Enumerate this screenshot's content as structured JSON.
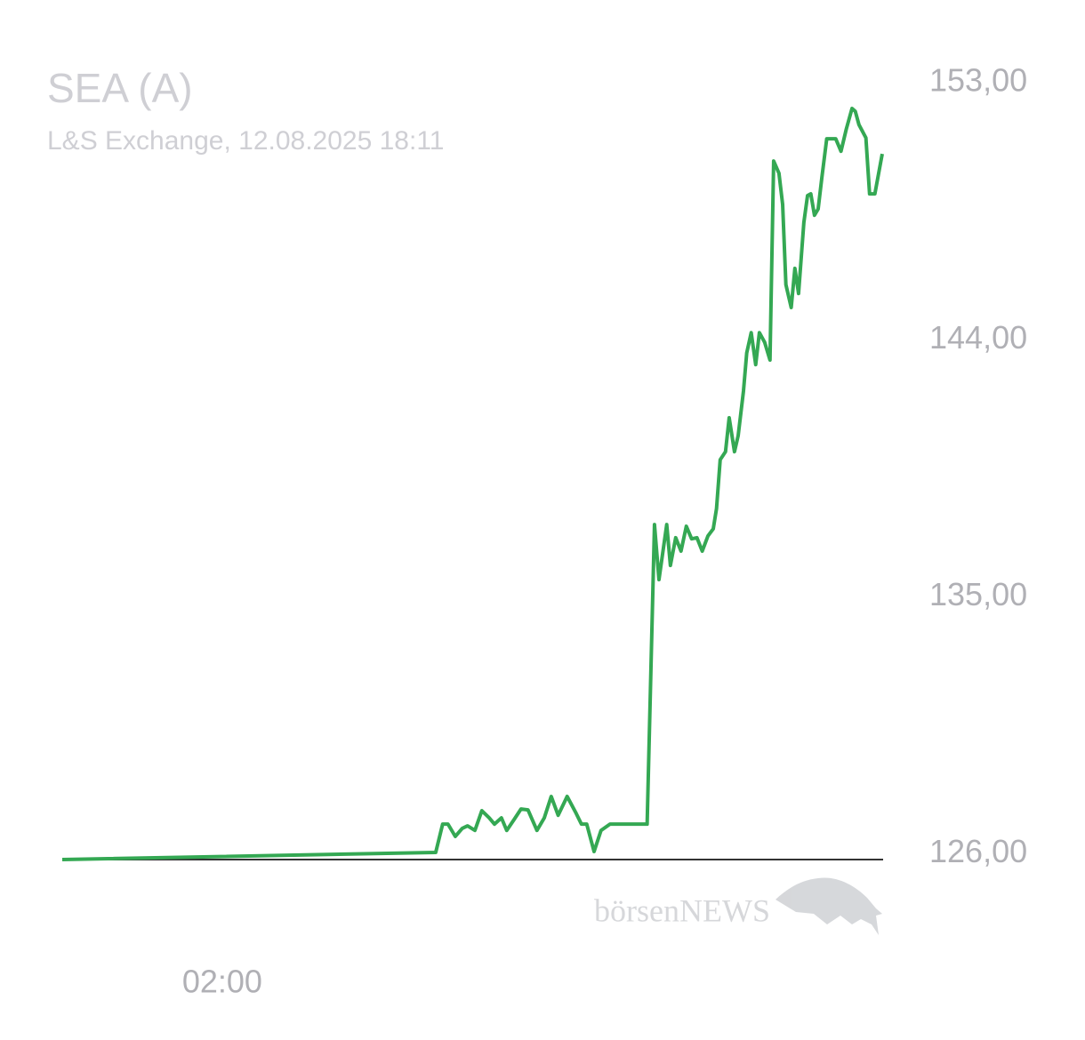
{
  "chart_data": {
    "type": "line",
    "title": "SEA (A)",
    "subtitle": "L&S Exchange, 12.08.2025 18:11",
    "watermark": "börsenNEWS",
    "x": [
      -1.92,
      7.23,
      7.4,
      7.53,
      7.71,
      7.88,
      8.01,
      8.19,
      8.36,
      8.54,
      8.67,
      8.84,
      8.97,
      9.15,
      9.32,
      9.49,
      9.71,
      9.89,
      10.06,
      10.23,
      10.45,
      10.67,
      10.8,
      10.93,
      11.11,
      11.28,
      11.5,
      12.41,
      12.59,
      12.7,
      12.89,
      12.98,
      13.11,
      13.24,
      13.37,
      13.5,
      13.63,
      13.76,
      13.9,
      14.03,
      14.11,
      14.2,
      14.33,
      14.42,
      14.55,
      14.64,
      14.77,
      14.85,
      14.96,
      15.07,
      15.16,
      15.29,
      15.42,
      15.51,
      15.64,
      15.73,
      15.81,
      15.94,
      16.03,
      16.12,
      16.25,
      16.34,
      16.42,
      16.51,
      16.6,
      16.69,
      16.81,
      17.03,
      17.16,
      17.29,
      17.43,
      17.51,
      17.6,
      17.77,
      17.86,
      17.99,
      18.17
    ],
    "series": [
      {
        "name": "SEA (A)",
        "color": "#34a853",
        "values": [
          125.8,
          126.05,
          127.04,
          127.04,
          126.61,
          126.89,
          126.98,
          126.82,
          127.51,
          127.26,
          127.04,
          127.26,
          126.82,
          127.2,
          127.57,
          127.54,
          126.82,
          127.26,
          128.01,
          127.35,
          128.01,
          127.42,
          127.04,
          127.04,
          126.08,
          126.82,
          127.04,
          127.04,
          137.53,
          135.6,
          137.53,
          136.1,
          137.07,
          136.6,
          137.47,
          137.03,
          137.07,
          136.6,
          137.13,
          137.38,
          138.09,
          139.8,
          140.08,
          141.27,
          140.08,
          140.64,
          142.2,
          143.54,
          144.25,
          143.13,
          144.25,
          143.91,
          143.29,
          150.26,
          149.83,
          148.74,
          145.93,
          145.13,
          146.5,
          145.62,
          148.11,
          149.05,
          149.11,
          148.36,
          148.58,
          149.67,
          151.04,
          151.04,
          150.6,
          151.38,
          152.1,
          152.0,
          151.53,
          151.07,
          149.11,
          149.11,
          150.51
        ]
      }
    ],
    "xlim": [
      -1.92,
      18.17
    ],
    "xticks": [
      {
        "value": 2,
        "label": "02:00"
      }
    ],
    "ylim": [
      125.8,
      154.03
    ],
    "yticks": [
      {
        "value": 126,
        "label": "126,00"
      },
      {
        "value": 135,
        "label": "135,00"
      },
      {
        "value": 144,
        "label": "144,00"
      },
      {
        "value": 153,
        "label": "153,00"
      }
    ],
    "grid": false
  }
}
